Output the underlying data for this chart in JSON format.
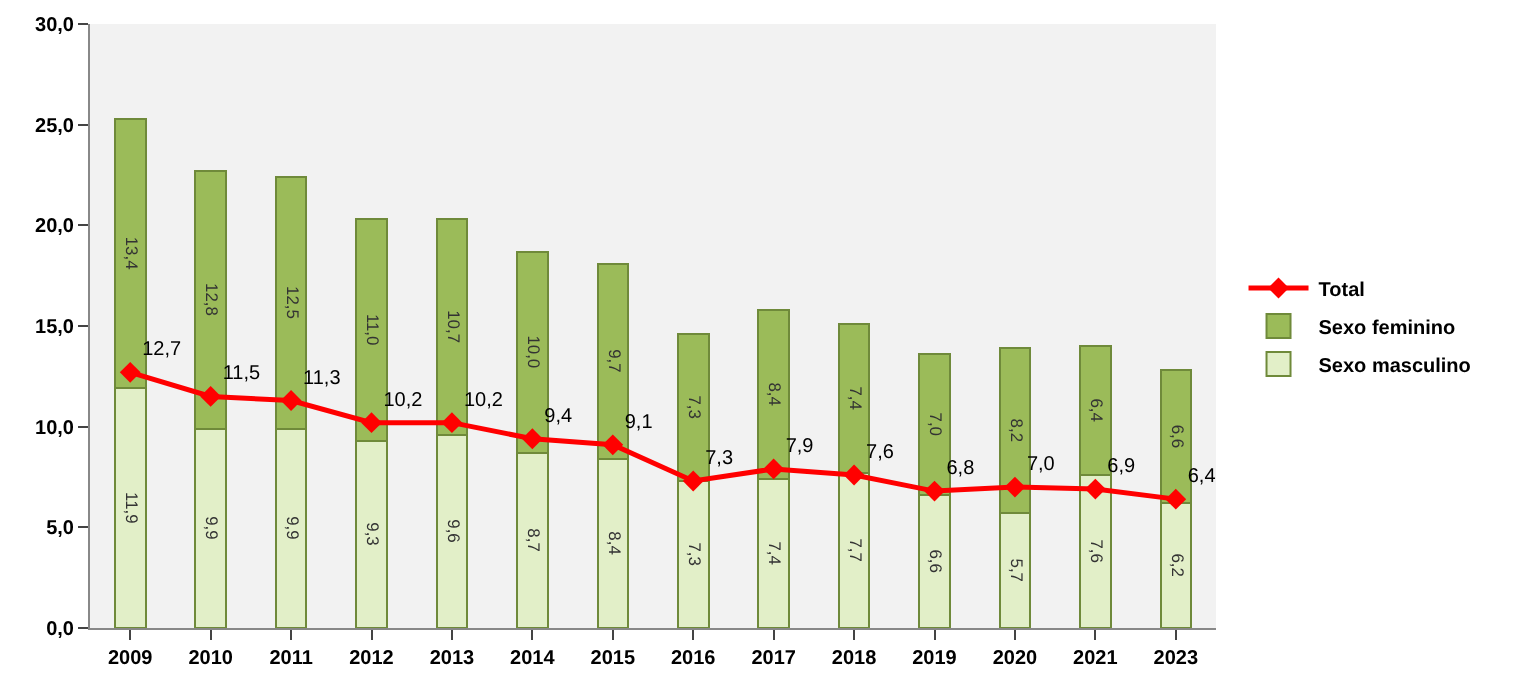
{
  "chart_data": {
    "type": "bar",
    "stacked": true,
    "categories": [
      "2009",
      "2010",
      "2011",
      "2012",
      "2013",
      "2014",
      "2015",
      "2016",
      "2017",
      "2018",
      "2019",
      "2020",
      "2021",
      "2023"
    ],
    "series": [
      {
        "name": "Sexo masculino",
        "color": "#e2efc8",
        "values": [
          11.9,
          9.9,
          9.9,
          9.3,
          9.6,
          8.7,
          8.4,
          7.3,
          7.4,
          7.7,
          6.6,
          5.7,
          7.6,
          6.2
        ],
        "value_labels": [
          "11,9",
          "9,9",
          "9,9",
          "9,3",
          "9,6",
          "8,7",
          "8,4",
          "7,3",
          "7,4",
          "7,7",
          "6,6",
          "5,7",
          "7,6",
          "6,2"
        ]
      },
      {
        "name": "Sexo feminino",
        "color": "#9bbb59",
        "values": [
          13.4,
          12.8,
          12.5,
          11.0,
          10.7,
          10.0,
          9.7,
          7.3,
          8.4,
          7.4,
          7.0,
          8.2,
          6.4,
          6.6
        ],
        "value_labels": [
          "13,4",
          "12,8",
          "12,5",
          "11,0",
          "10,7",
          "10,0",
          "9,7",
          "7,3",
          "8,4",
          "7,4",
          "7,0",
          "8,2",
          "6,4",
          "6,6"
        ]
      },
      {
        "name": "Total",
        "type": "line",
        "color": "#ff0000",
        "marker": "diamond",
        "values": [
          12.7,
          11.5,
          11.3,
          10.2,
          10.2,
          9.4,
          9.1,
          7.3,
          7.9,
          7.6,
          6.8,
          7.0,
          6.9,
          6.4
        ],
        "value_labels": [
          "12,7",
          "11,5",
          "11,3",
          "10,2",
          "10,2",
          "9,4",
          "9,1",
          "7,3",
          "7,9",
          "7,6",
          "6,8",
          "7,0",
          "6,9",
          "6,4"
        ]
      }
    ],
    "ylim": [
      0,
      30
    ],
    "yticks": [
      {
        "value": 0,
        "label": "0,0"
      },
      {
        "value": 5,
        "label": "5,0"
      },
      {
        "value": 10,
        "label": "10,0"
      },
      {
        "value": 15,
        "label": "15,0"
      },
      {
        "value": 20,
        "label": "20,0"
      },
      {
        "value": 25,
        "label": "25,0"
      },
      {
        "value": 30,
        "label": "30,0"
      }
    ],
    "grid": false,
    "legend": "right"
  }
}
